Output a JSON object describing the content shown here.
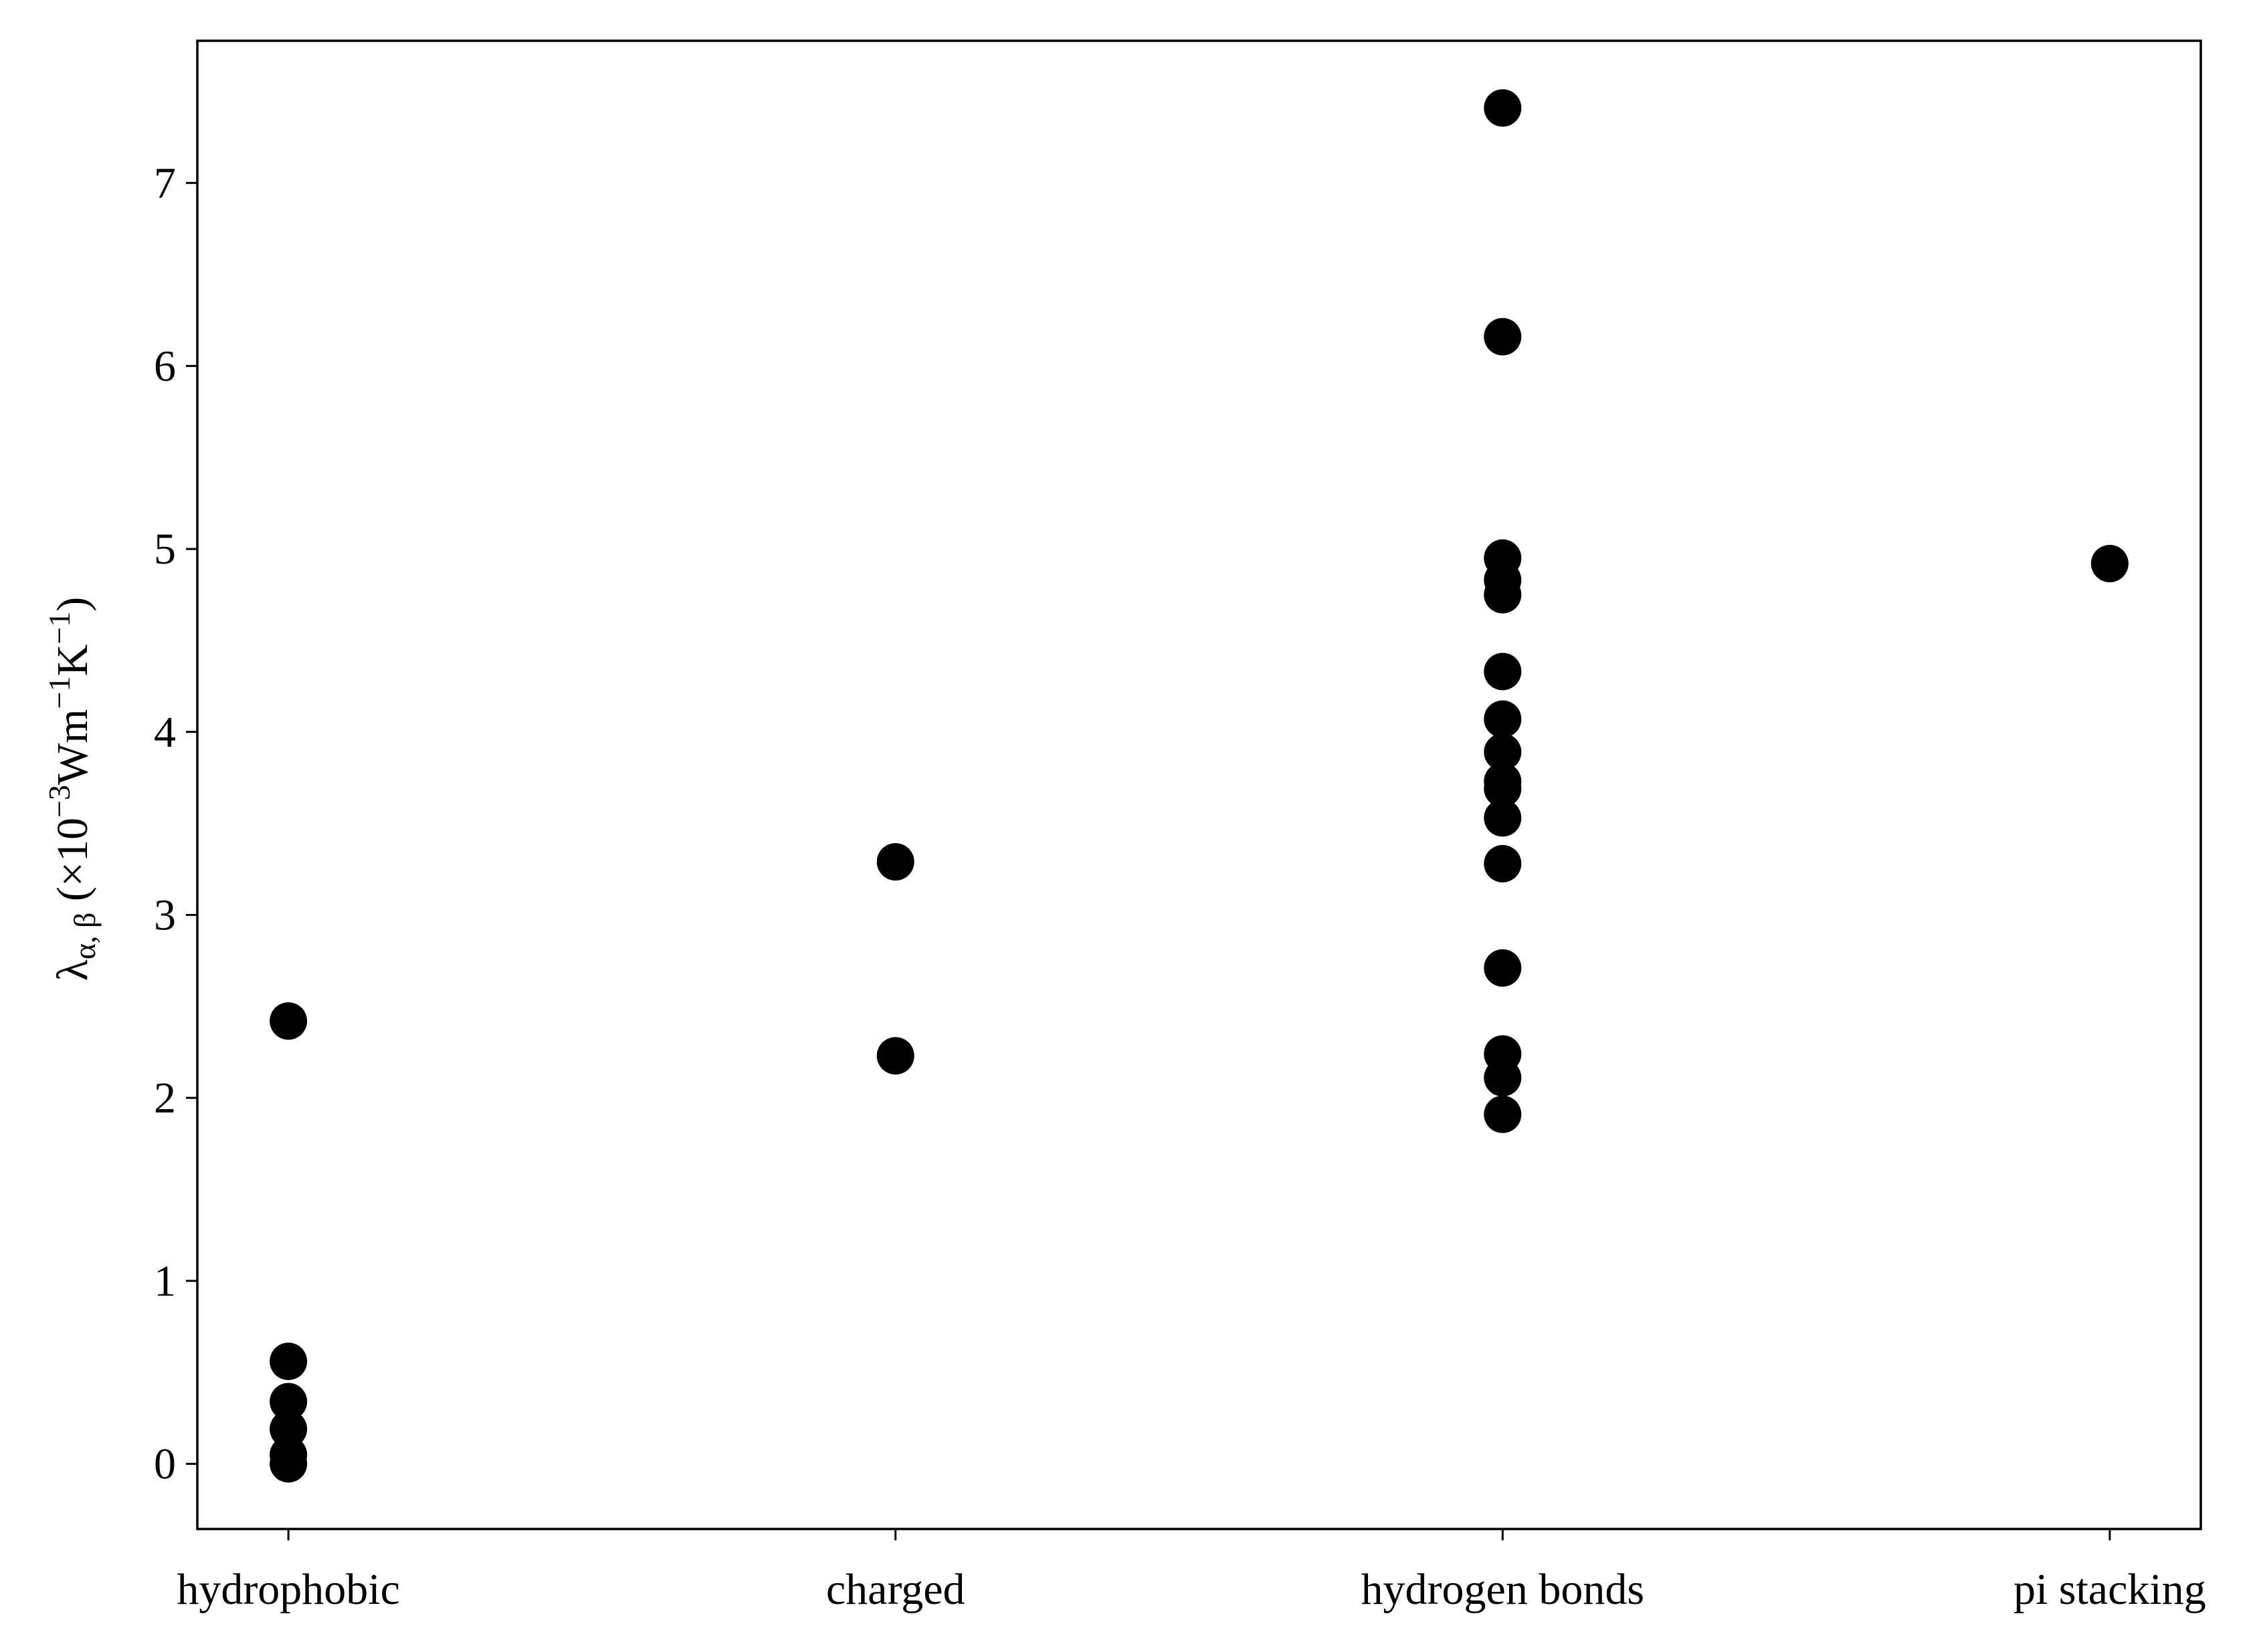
{
  "chart_data": {
    "type": "strip",
    "categories": [
      "hydrophobic",
      "charged",
      "hydrogen bonds",
      "pi stacking"
    ],
    "values": [
      [
        2.42,
        0.56,
        0.34,
        0.19,
        0.05,
        0.0
      ],
      [
        3.29,
        2.23
      ],
      [
        7.41,
        6.16,
        4.95,
        4.83,
        4.75,
        4.33,
        4.07,
        3.89,
        3.73,
        3.69,
        3.53,
        3.28,
        2.71,
        2.24,
        2.11,
        1.91
      ],
      [
        4.92
      ]
    ],
    "color": "#000000",
    "ylabel": [
      {
        "text": "λ"
      },
      {
        "text": "α, β",
        "shift": "sub"
      },
      {
        "text": "  (×10"
      },
      {
        "text": "−3",
        "shift": "super"
      },
      {
        "text": "Wm"
      },
      {
        "text": "−1",
        "shift": "super"
      },
      {
        "text": "K"
      },
      {
        "text": "−1",
        "shift": "super"
      },
      {
        "text": ")"
      }
    ],
    "xlim": [
      -0.15,
      3.15
    ],
    "ylim": [
      -0.356,
      7.777
    ],
    "yticks": [
      0,
      1,
      2,
      3,
      4,
      5,
      6,
      7
    ]
  }
}
